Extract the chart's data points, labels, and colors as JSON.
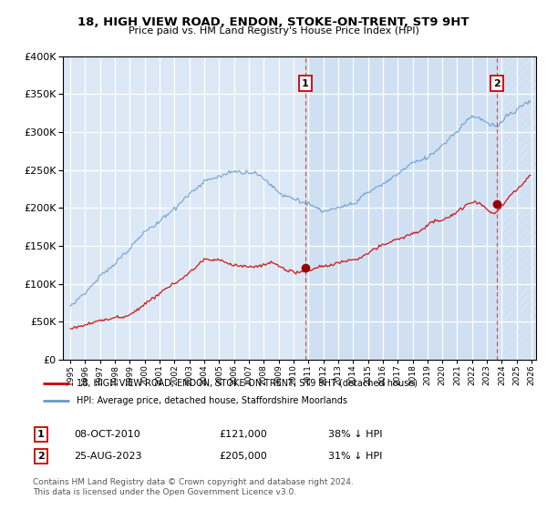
{
  "title": "18, HIGH VIEW ROAD, ENDON, STOKE-ON-TRENT, ST9 9HT",
  "subtitle": "Price paid vs. HM Land Registry's House Price Index (HPI)",
  "legend_line1": "18, HIGH VIEW ROAD, ENDON, STOKE-ON-TRENT, ST9 9HT (detached house)",
  "legend_line2": "HPI: Average price, detached house, Staffordshire Moorlands",
  "sale1_date": "08-OCT-2010",
  "sale1_price": "£121,000",
  "sale1_hpi": "38% ↓ HPI",
  "sale2_date": "25-AUG-2023",
  "sale2_price": "£205,000",
  "sale2_hpi": "31% ↓ HPI",
  "footer": "Contains HM Land Registry data © Crown copyright and database right 2024.\nThis data is licensed under the Open Government Licence v3.0.",
  "red_color": "#cc0000",
  "blue_color": "#6699cc",
  "plot_bg": "#dce8f5",
  "ylim": [
    0,
    400000
  ],
  "yticks": [
    0,
    50000,
    100000,
    150000,
    200000,
    250000,
    300000,
    350000,
    400000
  ],
  "sale1_x": 2010.78,
  "sale1_y": 121000,
  "sale2_x": 2023.65,
  "sale2_y": 205000,
  "xmin": 1995.0,
  "xmax": 2026.0
}
